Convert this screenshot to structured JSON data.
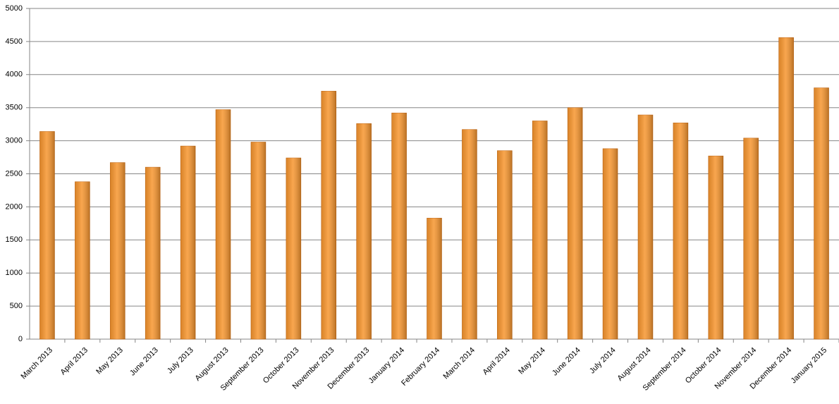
{
  "chart_data": {
    "type": "bar",
    "categories": [
      "March 2013",
      "April 2013",
      "May 2013",
      "June 2013",
      "July 2013",
      "August 2013",
      "September 2013",
      "October 2013",
      "November 2013",
      "December 2013",
      "January 2014",
      "February 2014",
      "March 2014",
      "April 2014",
      "May 2014",
      "June 2014",
      "July 2014",
      "August 2014",
      "September 2014",
      "October 2014",
      "November 2014",
      "December 2014",
      "January 2015"
    ],
    "values": [
      3140,
      2380,
      2670,
      2600,
      2920,
      3470,
      2980,
      2740,
      3750,
      3260,
      3420,
      1830,
      3170,
      2850,
      3300,
      3500,
      2880,
      3390,
      3270,
      2770,
      3040,
      4560,
      3800
    ],
    "color": "#f7962f",
    "ylim": [
      0,
      5000
    ],
    "yticks": [
      0,
      500,
      1000,
      1500,
      2000,
      2500,
      3000,
      3500,
      4000,
      4500,
      5000
    ],
    "grid": true
  }
}
